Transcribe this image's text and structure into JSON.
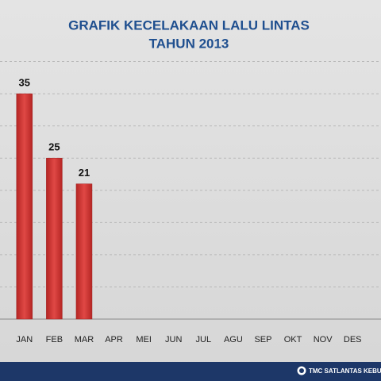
{
  "chart_data": {
    "type": "bar",
    "title": "GRAFIK KECELAKAAN LALU LINTAS",
    "subtitle": "TAHUN 2013",
    "categories": [
      "JAN",
      "FEB",
      "MAR",
      "APR",
      "MEI",
      "JUN",
      "JUL",
      "AGU",
      "SEP",
      "OKT",
      "NOV",
      "DES"
    ],
    "values": [
      35,
      25,
      21,
      null,
      null,
      null,
      null,
      null,
      null,
      null,
      null,
      null
    ],
    "color": "#d33a38",
    "ylim": [
      0,
      40
    ],
    "yticks": [
      0,
      5,
      10,
      15,
      20,
      25,
      30,
      35,
      40
    ],
    "grid": true,
    "footer": "TMC SATLANTAS KEBUMEN"
  }
}
